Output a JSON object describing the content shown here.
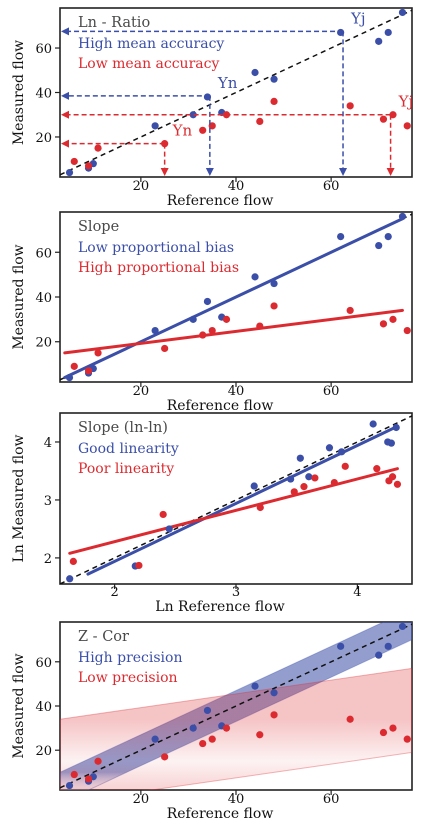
{
  "colors": {
    "blue": "#3b4fa8",
    "red": "#dc2b30",
    "black": "#111111",
    "gray": "#4a4a4a"
  },
  "chart_data": [
    {
      "type": "scatter",
      "title": "Ln - Ratio",
      "xlabel": "Reference flow",
      "ylabel": "Measured flow",
      "xlim": [
        3,
        77
      ],
      "ylim": [
        2,
        78
      ],
      "xticks": [
        20,
        40,
        60
      ],
      "yticks": [
        20,
        40,
        60
      ],
      "legend": [
        "High  mean accuracy",
        "Low mean accuracy"
      ],
      "annotations": [
        {
          "text": "Yn",
          "color": "blue",
          "x": 34.5,
          "y": 38.5
        },
        {
          "text": "Yj",
          "color": "blue",
          "x": 62.5,
          "y": 67.5
        },
        {
          "text": "Yn",
          "color": "red",
          "x": 25,
          "y": 17
        },
        {
          "text": "Yj",
          "color": "red",
          "x": 72.5,
          "y": 30
        }
      ],
      "series": [
        {
          "name": "High  mean accuracy",
          "color": "blue",
          "points": [
            [
              5,
              4
            ],
            [
              9,
              6
            ],
            [
              10,
              8
            ],
            [
              23,
              25
            ],
            [
              31,
              30
            ],
            [
              34,
              38
            ],
            [
              37,
              31
            ],
            [
              44,
              49
            ],
            [
              48,
              46
            ],
            [
              62,
              67
            ],
            [
              70,
              63
            ],
            [
              72,
              67
            ],
            [
              75,
              76
            ]
          ]
        },
        {
          "name": "Low mean accuracy",
          "color": "red",
          "points": [
            [
              6,
              9
            ],
            [
              9,
              7
            ],
            [
              11,
              15
            ],
            [
              25,
              17
            ],
            [
              33,
              23
            ],
            [
              35,
              25
            ],
            [
              38,
              30
            ],
            [
              45,
              27
            ],
            [
              48,
              36
            ],
            [
              64,
              34
            ],
            [
              71,
              28
            ],
            [
              73,
              30
            ],
            [
              76,
              25
            ]
          ]
        }
      ]
    },
    {
      "type": "scatter",
      "title": "Slope",
      "xlabel": "Reference flow",
      "ylabel": "Measured flow",
      "xlim": [
        3,
        77
      ],
      "ylim": [
        2,
        78
      ],
      "xticks": [
        20,
        40,
        60
      ],
      "yticks": [
        20,
        40,
        60
      ],
      "legend": [
        "Low proportional bias",
        "High proportional bias"
      ],
      "series": [
        {
          "name": "Low proportional bias",
          "color": "blue",
          "fit": [
            [
              4,
              4
            ],
            [
              75,
              75
            ]
          ],
          "points": [
            [
              5,
              4
            ],
            [
              9,
              6
            ],
            [
              10,
              8
            ],
            [
              23,
              25
            ],
            [
              31,
              30
            ],
            [
              34,
              38
            ],
            [
              37,
              31
            ],
            [
              44,
              49
            ],
            [
              48,
              46
            ],
            [
              62,
              67
            ],
            [
              70,
              63
            ],
            [
              72,
              67
            ],
            [
              75,
              76
            ]
          ]
        },
        {
          "name": "High proportional bias",
          "color": "red",
          "fit": [
            [
              4,
              15
            ],
            [
              75,
              34
            ]
          ],
          "points": [
            [
              6,
              9
            ],
            [
              9,
              7
            ],
            [
              11,
              15
            ],
            [
              25,
              17
            ],
            [
              33,
              23
            ],
            [
              35,
              25
            ],
            [
              38,
              30
            ],
            [
              45,
              27
            ],
            [
              48,
              36
            ],
            [
              64,
              34
            ],
            [
              71,
              28
            ],
            [
              73,
              30
            ],
            [
              76,
              25
            ]
          ]
        }
      ]
    },
    {
      "type": "scatter",
      "title": "Slope (ln-ln)",
      "xlabel": "Ln Reference flow",
      "ylabel": "Ln Measured flow",
      "xlim": [
        1.55,
        4.45
      ],
      "ylim": [
        1.55,
        4.5
      ],
      "xticks": [
        2,
        3,
        4
      ],
      "yticks": [
        2,
        3,
        4
      ],
      "legend": [
        "Good linearity",
        "Poor linearity"
      ],
      "series": [
        {
          "name": "Good linearity",
          "color": "blue",
          "fit": [
            [
              1.78,
              1.72
            ],
            [
              4.33,
              4.27
            ]
          ],
          "points": [
            [
              1.63,
              1.64
            ],
            [
              2.17,
              1.86
            ],
            [
              2.45,
              2.5
            ],
            [
              3.15,
              3.24
            ],
            [
              3.45,
              3.36
            ],
            [
              3.53,
              3.72
            ],
            [
              3.6,
              3.4
            ],
            [
              3.77,
              3.9
            ],
            [
              3.87,
              3.83
            ],
            [
              4.13,
              4.31
            ],
            [
              4.25,
              4.0
            ],
            [
              4.28,
              3.98
            ],
            [
              4.32,
              4.25
            ]
          ]
        },
        {
          "name": "Poor linearity",
          "color": "red",
          "fit": [
            [
              1.63,
              2.08
            ],
            [
              4.33,
              3.54
            ]
          ],
          "points": [
            [
              1.66,
              1.94
            ],
            [
              2.2,
              1.87
            ],
            [
              2.4,
              2.75
            ],
            [
              3.2,
              2.87
            ],
            [
              3.48,
              3.14
            ],
            [
              3.56,
              3.23
            ],
            [
              3.65,
              3.38
            ],
            [
              3.81,
              3.3
            ],
            [
              3.9,
              3.58
            ],
            [
              4.16,
              3.54
            ],
            [
              4.26,
              3.33
            ],
            [
              4.29,
              3.4
            ],
            [
              4.33,
              3.27
            ]
          ]
        }
      ]
    },
    {
      "type": "scatter",
      "title": "Z - Cor",
      "xlabel": "Reference flow",
      "ylabel": "Measured flow",
      "xlim": [
        3,
        77
      ],
      "ylim": [
        2,
        78
      ],
      "xticks": [
        20,
        40,
        60
      ],
      "yticks": [
        20,
        40,
        60
      ],
      "legend": [
        "High precision",
        "Low precision"
      ],
      "series": [
        {
          "name": "High precision",
          "color": "blue",
          "band": [
            [
              3,
              3
            ],
            [
              77,
              77
            ]
          ],
          "points": [
            [
              5,
              4
            ],
            [
              9,
              6
            ],
            [
              10,
              8
            ],
            [
              23,
              25
            ],
            [
              31,
              30
            ],
            [
              34,
              38
            ],
            [
              37,
              31
            ],
            [
              44,
              49
            ],
            [
              48,
              46
            ],
            [
              62,
              67
            ],
            [
              70,
              63
            ],
            [
              72,
              67
            ],
            [
              75,
              76
            ]
          ]
        },
        {
          "name": "Low precision",
          "color": "red",
          "band": [
            [
              3,
              15
            ],
            [
              77,
              38
            ]
          ],
          "points": [
            [
              6,
              9
            ],
            [
              9,
              7
            ],
            [
              11,
              15
            ],
            [
              25,
              17
            ],
            [
              33,
              23
            ],
            [
              35,
              25
            ],
            [
              38,
              30
            ],
            [
              45,
              27
            ],
            [
              48,
              36
            ],
            [
              64,
              34
            ],
            [
              71,
              28
            ],
            [
              73,
              30
            ],
            [
              76,
              25
            ]
          ]
        }
      ]
    }
  ]
}
